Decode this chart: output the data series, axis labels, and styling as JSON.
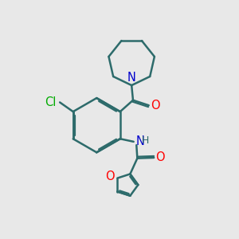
{
  "bg_color": "#e8e8e8",
  "bond_color": "#2d6b6b",
  "N_color": "#0000cc",
  "O_color": "#ff0000",
  "Cl_color": "#00aa00",
  "bond_width": 1.8,
  "dbo": 0.055,
  "font_size": 10.5,
  "fig_size": [
    3.0,
    3.0
  ],
  "dpi": 100,
  "xlim": [
    0.5,
    7.5
  ],
  "ylim": [
    0.3,
    8.5
  ]
}
